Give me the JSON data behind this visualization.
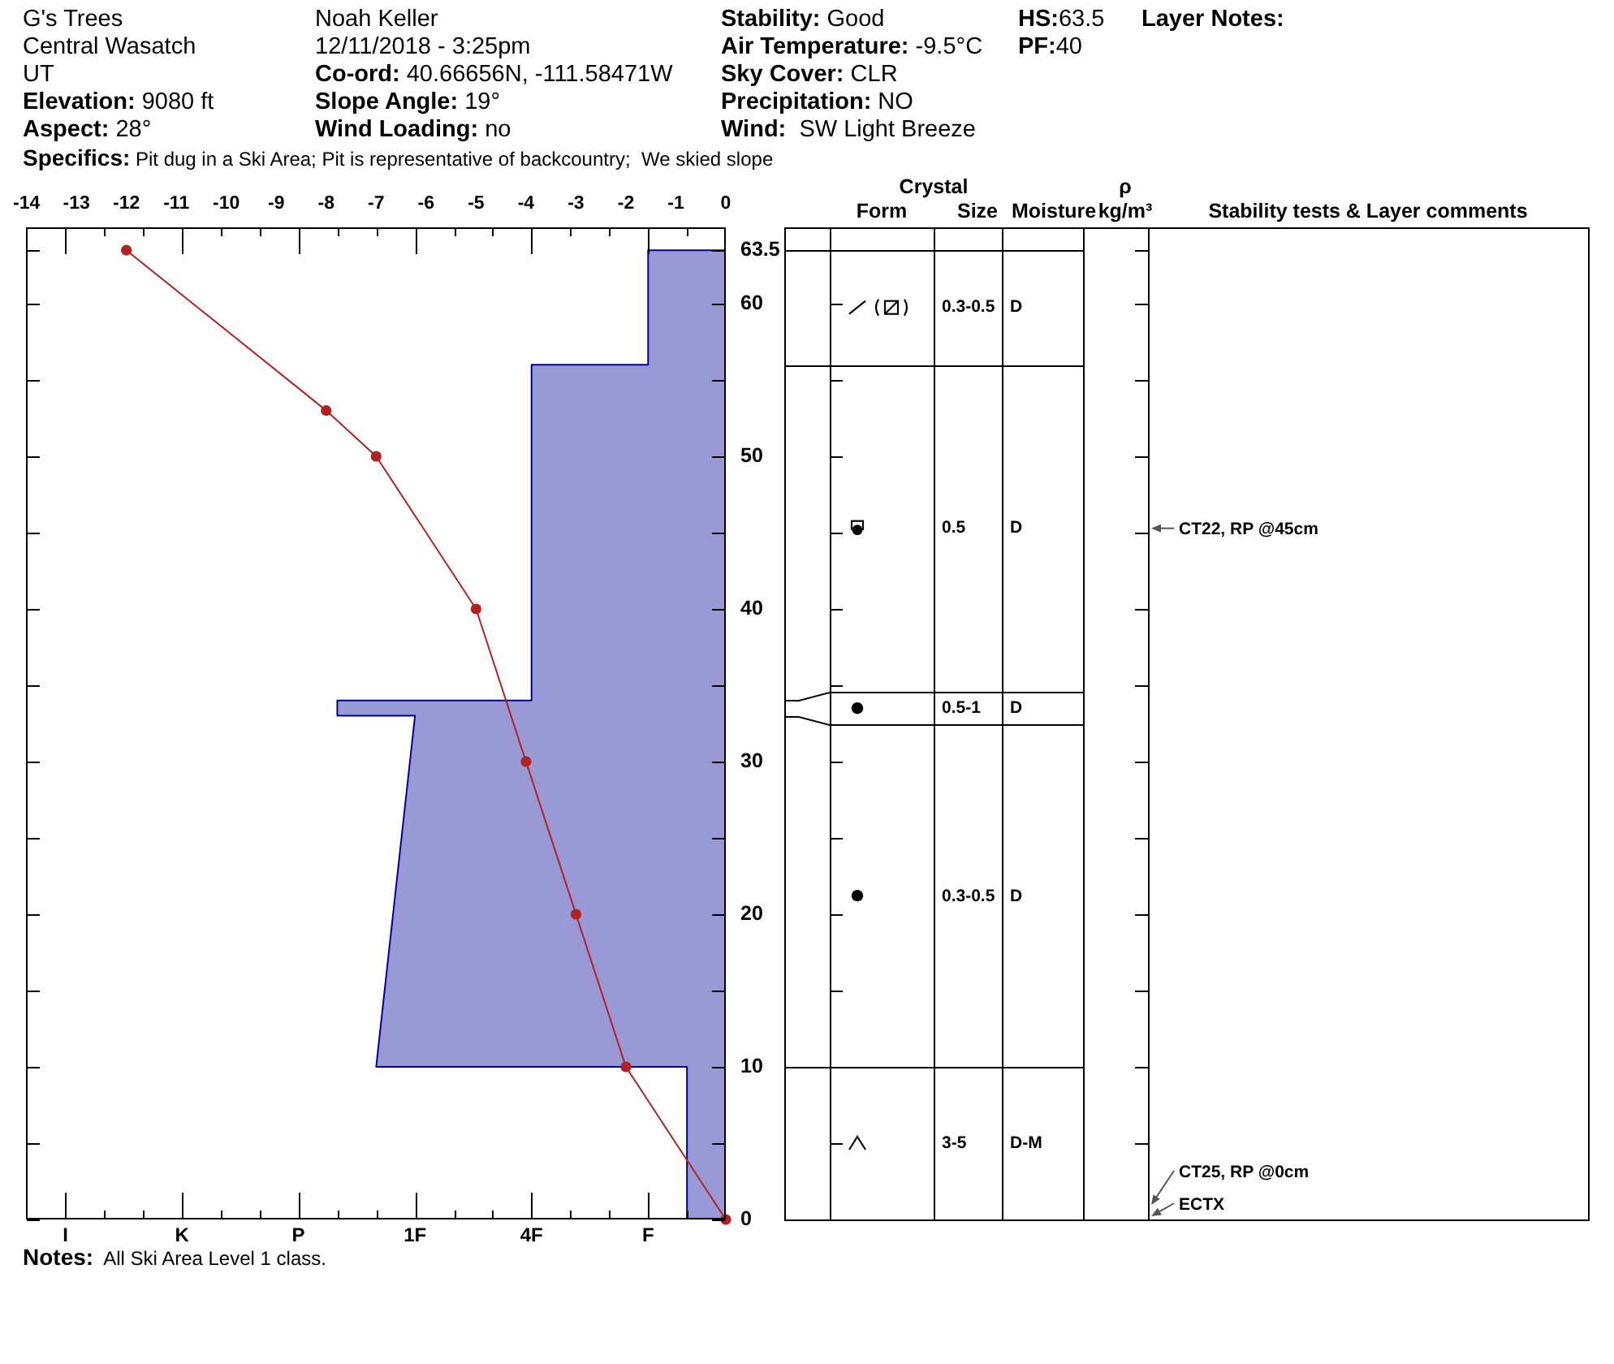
{
  "chart_data": [
    {
      "type": "line",
      "annotations": [
        "G's Trees",
        "Central Wasatch",
        "UT",
        "Elevation: 9080 ft",
        "Aspect: 28°",
        "Noah Keller",
        "12/11/2018 - 3:25pm",
        "Co-ord: 40.66656N, -111.58471W",
        "Slope Angle: 19°",
        "Wind Loading: no",
        "Stability: Good",
        "Air Temperature: -9.5°C",
        "Sky Cover: CLR",
        "Precipitation: NO",
        "Wind:  SW Light Breeze",
        "HS:63.5",
        "PF:40",
        "Layer Notes:",
        "Specifics: Pit dug in a Ski Area; Pit is representative of backcountry;  We skied slope",
        "Notes:  All Ski Area Level 1 class."
      ],
      "xlim": [
        -9,
        9
      ],
      "xticks": [
        {
          "value": -8,
          "label": "I"
        },
        {
          "value": -7,
          "label": null
        },
        {
          "value": -6,
          "label": null
        },
        {
          "value": -5,
          "label": "K"
        },
        {
          "value": -4,
          "label": null
        },
        {
          "value": -3,
          "label": null
        },
        {
          "value": -2,
          "label": "P"
        },
        {
          "value": -1,
          "label": null
        },
        {
          "value": 0,
          "label": null
        },
        {
          "value": 1,
          "label": "1F"
        },
        {
          "value": 2,
          "label": null
        },
        {
          "value": 3,
          "label": null
        },
        {
          "value": 4,
          "label": "4F"
        },
        {
          "value": 5,
          "label": null
        },
        {
          "value": 6,
          "label": null
        },
        {
          "value": 7,
          "label": "F"
        },
        {
          "value": 8,
          "label": null
        }
      ],
      "x2lim": [
        -14,
        0
      ],
      "x2ticks": [
        -14,
        -13,
        -12,
        -11,
        -10,
        -9,
        -8,
        -7,
        -6,
        -5,
        -4,
        -3,
        -2,
        -1,
        0
      ],
      "ylim": [
        0,
        65
      ],
      "yticks": [
        0,
        {
          "value": 5,
          "label": null
        },
        10,
        {
          "value": 15,
          "label": null
        },
        20,
        {
          "value": 25,
          "label": null
        },
        30,
        {
          "value": 35,
          "label": null
        },
        40,
        {
          "value": 45,
          "label": null
        },
        50,
        {
          "value": 55,
          "label": null
        },
        60,
        63.5
      ],
      "series": [
        {
          "type": "area",
          "color": "#9999d5",
          "x": [
            9,
            8,
            8,
            0,
            1,
            -1,
            -1,
            4,
            4,
            7,
            7,
            9
          ],
          "values": [
            0,
            0,
            10,
            10,
            33,
            33,
            34,
            34,
            56,
            56,
            63.5,
            63.5
          ]
        },
        {
          "type": "line",
          "color": "#b22222",
          "axis": "x2",
          "marker": "circle",
          "x": [
            -12,
            -8,
            -7,
            -5,
            -4,
            -3,
            -2,
            0
          ],
          "values": [
            63.5,
            53,
            50,
            40,
            30,
            20,
            10,
            0
          ]
        }
      ]
    },
    {
      "type": "other",
      "title": "Crystal",
      "categories": [
        "Form",
        "Size",
        "Moisture",
        "ρ kg/m³",
        "Stability tests & Layer comments"
      ],
      "annotations": [
        {
          "text": "0.3-0.5",
          "x": "Size"
        },
        {
          "text": "D",
          "x": "Moisture"
        },
        {
          "text": "0.5",
          "x": "Size"
        },
        {
          "text": "D",
          "x": "Moisture"
        },
        {
          "text": "0.5-1",
          "x": "Size"
        },
        {
          "text": "D",
          "x": "Moisture"
        },
        {
          "text": "0.3-0.5",
          "x": "Size"
        },
        {
          "text": "D",
          "x": "Moisture"
        },
        {
          "text": "3-5",
          "x": "Size"
        },
        {
          "text": "D-M",
          "x": "Moisture"
        },
        {
          "text": "CT22, RP @45cm",
          "x": "Stability tests & Layer comments"
        },
        {
          "text": "CT25, RP @0cm",
          "x": "Stability tests & Layer comments"
        },
        {
          "text": "ECTX",
          "x": "Stability tests & Layer comments"
        }
      ]
    }
  ]
}
